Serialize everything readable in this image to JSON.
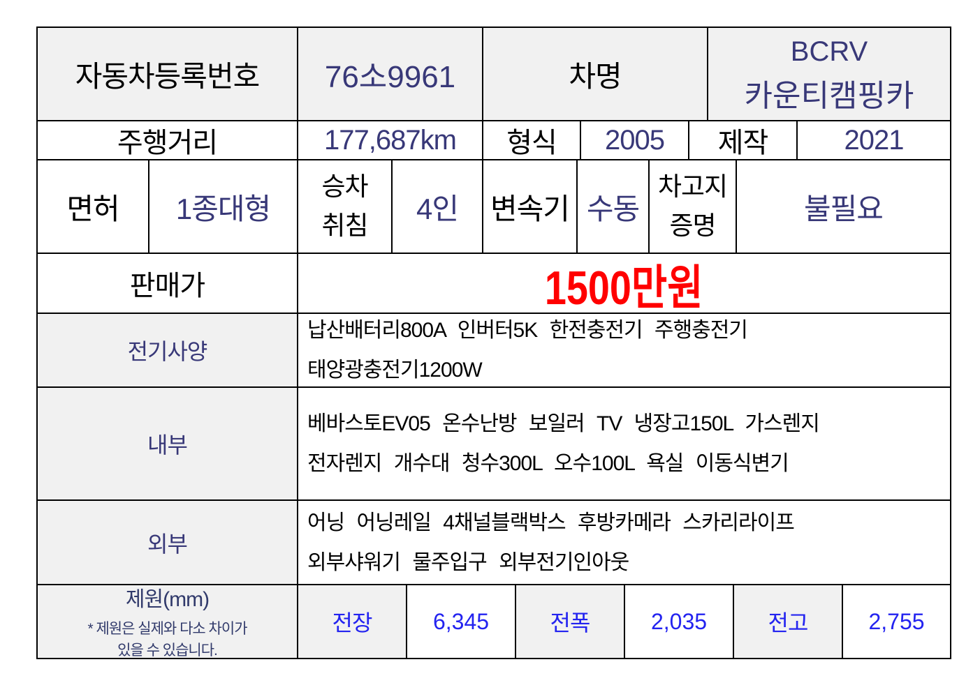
{
  "colors": {
    "value_navy": "#383878",
    "dim_blue": "#2323f0",
    "price_red": "#ff0000",
    "header_gray": "#f1f1f1",
    "border_black": "#000000"
  },
  "registration": {
    "reg_label": "자동차등록번호",
    "reg_value": "76소9961",
    "name_label": "차명",
    "name_value_line1": "BCRV",
    "name_value_line2": "카운티캠핑카"
  },
  "summary": {
    "mileage_label": "주행거리",
    "mileage_value": "177,687km",
    "type_label": "형식",
    "type_value": "2005",
    "made_label": "제작",
    "made_value": "2021"
  },
  "license_row": {
    "license_label": "면허",
    "license_value": "1종대형",
    "sleep_label_line1": "승차",
    "sleep_label_line2": "취침",
    "sleep_value": "4인",
    "trans_label": "변속기",
    "trans_value": "수동",
    "garage_label_line1": "차고지",
    "garage_label_line2": "증명",
    "garage_value": "불필요"
  },
  "price": {
    "label": "판매가",
    "value": "1500만원"
  },
  "electric": {
    "label": "전기사양",
    "line1": "납산배터리800A 인버터5K 한전충전기 주행충전기",
    "line2": "태양광충전기1200W"
  },
  "interior": {
    "label": "내부",
    "line1": "베바스토EV05 온수난방 보일러 TV 냉장고150L 가스렌지",
    "line2": "전자렌지 개수대 청수300L 오수100L 욕실 이동식변기"
  },
  "exterior": {
    "label": "외부",
    "line1": "어닝 어닝레일 4채널블랙박스 후방카메라 스카리라이프",
    "line2": "외부샤워기 물주입구 외부전기인아웃"
  },
  "dimensions": {
    "title": "제원(mm)",
    "note_line1": "* 제원은 실제와 다소 차이가",
    "note_line2": "있을 수 있습니다.",
    "dims": [
      {
        "label": "전장",
        "value": "6,345"
      },
      {
        "label": "전폭",
        "value": "2,035"
      },
      {
        "label": "전고",
        "value": "2,755"
      }
    ]
  }
}
